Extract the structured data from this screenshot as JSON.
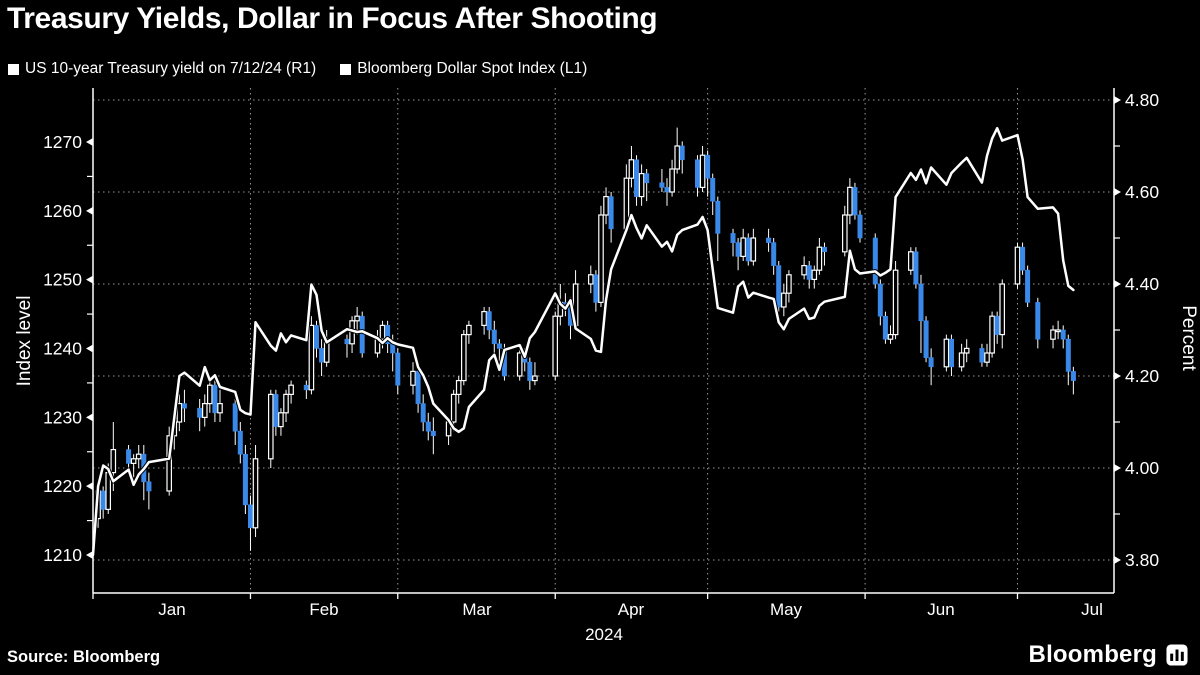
{
  "title": "Treasury Yields, Dollar in Focus After Shooting",
  "legend": {
    "items": [
      {
        "marker_color": "#ffffff",
        "label": "US 10-year Treasury yield on 7/12/24 (R1)"
      },
      {
        "marker_color": "#ffffff",
        "label": "Bloomberg Dollar Spot Index (L1)"
      }
    ]
  },
  "source_label": "Source: Bloomberg",
  "brand": {
    "wordmark": "Bloomberg"
  },
  "chart_data": {
    "type": "mixed",
    "background": "#000000",
    "text_color": "#ffffff",
    "grid": {
      "horizontal": true,
      "vertical": true,
      "color": "#999999",
      "style": "dotted"
    },
    "x_axis": {
      "months": [
        "Jan",
        "Feb",
        "Mar",
        "Apr",
        "May",
        "Jun",
        "Jul"
      ],
      "year_label": "2024",
      "month_start_days": [
        0,
        31,
        60,
        91,
        121,
        152,
        182
      ],
      "domain_days": [
        0,
        201
      ]
    },
    "left_axis": {
      "title": "Index level",
      "tick_labels": [
        1270,
        1260,
        1250,
        1240,
        1230,
        1220,
        1210
      ],
      "minor_ticks": [
        1265,
        1255,
        1245,
        1235,
        1225,
        1215
      ]
    },
    "right_axis": {
      "title": "Percent",
      "tick_labels": [
        "4.80",
        "4.60",
        "4.40",
        "4.20",
        "4.00",
        "3.80"
      ],
      "minor_ticks": [
        4.7,
        4.5,
        4.3,
        4.1,
        3.9
      ]
    },
    "series": [
      {
        "name": "US 10-year Treasury yield on 7/12/24",
        "type": "candlestick",
        "axis": "right",
        "up_body": "hollow",
        "up_color": "#ffffff",
        "down_color": "#3a89e8",
        "wick_color": "#ffffff",
        "dates": [
          "01-02",
          "01-03",
          "01-04",
          "01-05",
          "01-08",
          "01-09",
          "01-10",
          "01-11",
          "01-12",
          "01-16",
          "01-17",
          "01-18",
          "01-19",
          "01-22",
          "01-23",
          "01-24",
          "01-25",
          "01-26",
          "01-29",
          "01-30",
          "01-31",
          "02-01",
          "02-02",
          "02-05",
          "02-06",
          "02-07",
          "02-08",
          "02-09",
          "02-12",
          "02-13",
          "02-14",
          "02-15",
          "02-16",
          "02-20",
          "02-21",
          "02-22",
          "02-23",
          "02-26",
          "02-27",
          "02-28",
          "02-29",
          "03-01",
          "03-04",
          "03-05",
          "03-06",
          "03-07",
          "03-08",
          "03-11",
          "03-12",
          "03-13",
          "03-14",
          "03-15",
          "03-18",
          "03-19",
          "03-20",
          "03-21",
          "03-22",
          "03-25",
          "03-26",
          "03-27",
          "03-28",
          "04-01",
          "04-02",
          "04-03",
          "04-04",
          "04-05",
          "04-08",
          "04-09",
          "04-10",
          "04-11",
          "04-12",
          "04-15",
          "04-16",
          "04-17",
          "04-18",
          "04-19",
          "04-22",
          "04-23",
          "04-24",
          "04-25",
          "04-26",
          "04-29",
          "04-30",
          "05-01",
          "05-02",
          "05-03",
          "05-06",
          "05-07",
          "05-08",
          "05-09",
          "05-10",
          "05-13",
          "05-14",
          "05-15",
          "05-16",
          "05-17",
          "05-20",
          "05-21",
          "05-22",
          "05-23",
          "05-24",
          "05-28",
          "05-29",
          "05-30",
          "05-31",
          "06-03",
          "06-04",
          "06-05",
          "06-06",
          "06-07",
          "06-10",
          "06-11",
          "06-12",
          "06-13",
          "06-14",
          "06-17",
          "06-18",
          "06-20",
          "06-21",
          "06-24",
          "06-25",
          "06-26",
          "06-27",
          "06-28",
          "07-01",
          "07-02",
          "07-03",
          "07-05",
          "07-08",
          "07-09",
          "07-10",
          "07-11",
          "07-12"
        ],
        "open": [
          3.89,
          3.95,
          3.91,
          3.99,
          4.04,
          4.01,
          4.02,
          4.03,
          3.97,
          3.95,
          4.07,
          4.1,
          4.14,
          4.13,
          4.11,
          4.14,
          4.18,
          4.12,
          4.14,
          4.08,
          4.03,
          3.92,
          3.87,
          4.02,
          4.16,
          4.09,
          4.12,
          4.16,
          4.18,
          4.17,
          4.31,
          4.26,
          4.23,
          4.28,
          4.27,
          4.32,
          4.33,
          4.25,
          4.28,
          4.31,
          4.27,
          4.25,
          4.18,
          4.21,
          4.14,
          4.1,
          4.08,
          4.07,
          4.1,
          4.16,
          4.19,
          4.29,
          4.31,
          4.34,
          4.3,
          4.27,
          4.26,
          4.2,
          4.25,
          4.23,
          4.19,
          4.2,
          4.33,
          4.36,
          4.35,
          4.31,
          4.4,
          4.42,
          4.36,
          4.55,
          4.59,
          4.52,
          4.63,
          4.67,
          4.59,
          4.64,
          4.62,
          4.61,
          4.6,
          4.65,
          4.7,
          4.67,
          4.61,
          4.68,
          4.63,
          4.58,
          4.51,
          4.49,
          4.46,
          4.5,
          4.45,
          4.5,
          4.49,
          4.44,
          4.35,
          4.38,
          4.42,
          4.44,
          4.41,
          4.43,
          4.48,
          4.47,
          4.55,
          4.61,
          4.55,
          4.5,
          4.4,
          4.33,
          4.28,
          4.29,
          4.43,
          4.47,
          4.4,
          4.32,
          4.24,
          4.22,
          4.28,
          4.22,
          4.25,
          4.26,
          4.23,
          4.25,
          4.33,
          4.29,
          4.4,
          4.48,
          4.43,
          4.36,
          4.28,
          4.3,
          4.3,
          4.28,
          4.21
        ],
        "high": [
          3.97,
          3.96,
          4.01,
          4.1,
          4.05,
          4.03,
          4.05,
          4.05,
          3.99,
          4.09,
          4.13,
          4.16,
          4.17,
          4.15,
          4.16,
          4.2,
          4.19,
          4.17,
          4.15,
          4.1,
          4.05,
          3.94,
          4.05,
          4.17,
          4.17,
          4.13,
          4.17,
          4.19,
          4.19,
          4.33,
          4.32,
          4.28,
          4.3,
          4.29,
          4.33,
          4.35,
          4.34,
          4.3,
          4.32,
          4.32,
          4.29,
          4.26,
          4.23,
          4.22,
          4.16,
          4.12,
          4.11,
          4.11,
          4.17,
          4.2,
          4.3,
          4.32,
          4.35,
          4.35,
          4.32,
          4.28,
          4.27,
          4.26,
          4.26,
          4.24,
          4.23,
          4.34,
          4.4,
          4.38,
          4.37,
          4.43,
          4.44,
          4.43,
          4.57,
          4.61,
          4.6,
          4.66,
          4.7,
          4.68,
          4.66,
          4.65,
          4.65,
          4.63,
          4.67,
          4.74,
          4.71,
          4.68,
          4.7,
          4.69,
          4.64,
          4.59,
          4.52,
          4.5,
          4.52,
          4.51,
          4.52,
          4.52,
          4.5,
          4.45,
          4.4,
          4.43,
          4.46,
          4.45,
          4.44,
          4.5,
          4.49,
          4.57,
          4.63,
          4.62,
          4.56,
          4.51,
          4.41,
          4.34,
          4.31,
          4.45,
          4.48,
          4.48,
          4.42,
          4.33,
          4.26,
          4.29,
          4.29,
          4.27,
          4.28,
          4.27,
          4.27,
          4.34,
          4.34,
          4.41,
          4.49,
          4.49,
          4.44,
          4.37,
          4.31,
          4.32,
          4.31,
          4.29,
          4.22
        ],
        "low": [
          3.87,
          3.89,
          3.9,
          3.95,
          3.99,
          3.98,
          4.0,
          3.93,
          3.91,
          3.94,
          4.04,
          4.08,
          4.1,
          4.08,
          4.09,
          4.12,
          4.1,
          4.1,
          4.05,
          4.01,
          3.9,
          3.82,
          3.85,
          4.0,
          4.07,
          4.07,
          4.1,
          4.14,
          4.15,
          4.16,
          4.24,
          4.2,
          4.22,
          4.24,
          4.25,
          4.29,
          4.24,
          4.24,
          4.26,
          4.25,
          4.21,
          4.16,
          4.16,
          4.12,
          4.08,
          4.06,
          4.03,
          4.05,
          4.08,
          4.14,
          4.18,
          4.27,
          4.29,
          4.28,
          4.25,
          4.22,
          4.19,
          4.19,
          4.21,
          4.17,
          4.18,
          4.19,
          4.31,
          4.33,
          4.28,
          4.3,
          4.38,
          4.34,
          4.35,
          4.53,
          4.49,
          4.51,
          4.61,
          4.57,
          4.57,
          4.58,
          4.6,
          4.57,
          4.59,
          4.64,
          4.64,
          4.59,
          4.6,
          4.59,
          4.55,
          4.45,
          4.46,
          4.43,
          4.45,
          4.44,
          4.44,
          4.47,
          4.42,
          4.34,
          4.33,
          4.36,
          4.41,
          4.39,
          4.39,
          4.42,
          4.44,
          4.46,
          4.53,
          4.54,
          4.49,
          4.39,
          4.31,
          4.27,
          4.27,
          4.28,
          4.42,
          4.39,
          4.25,
          4.23,
          4.18,
          4.21,
          4.2,
          4.21,
          4.23,
          4.22,
          4.22,
          4.24,
          4.27,
          4.26,
          4.39,
          4.42,
          4.35,
          4.26,
          4.26,
          4.28,
          4.26,
          4.18,
          4.16
        ],
        "close": [
          3.95,
          3.91,
          3.99,
          4.04,
          4.01,
          4.02,
          4.03,
          3.97,
          3.95,
          4.07,
          4.1,
          4.14,
          4.13,
          4.11,
          4.14,
          4.18,
          4.12,
          4.14,
          4.08,
          4.03,
          3.92,
          3.87,
          4.02,
          4.16,
          4.09,
          4.12,
          4.16,
          4.18,
          4.17,
          4.31,
          4.26,
          4.23,
          4.28,
          4.27,
          4.32,
          4.33,
          4.25,
          4.28,
          4.31,
          4.27,
          4.25,
          4.18,
          4.21,
          4.14,
          4.1,
          4.08,
          4.07,
          4.1,
          4.16,
          4.19,
          4.29,
          4.31,
          4.34,
          4.3,
          4.27,
          4.26,
          4.2,
          4.25,
          4.23,
          4.19,
          4.2,
          4.33,
          4.36,
          4.35,
          4.31,
          4.4,
          4.42,
          4.36,
          4.55,
          4.59,
          4.52,
          4.63,
          4.67,
          4.59,
          4.64,
          4.62,
          4.61,
          4.6,
          4.65,
          4.7,
          4.67,
          4.61,
          4.68,
          4.63,
          4.58,
          4.51,
          4.49,
          4.46,
          4.5,
          4.45,
          4.5,
          4.49,
          4.44,
          4.35,
          4.38,
          4.42,
          4.44,
          4.41,
          4.43,
          4.48,
          4.47,
          4.55,
          4.61,
          4.55,
          4.5,
          4.4,
          4.33,
          4.28,
          4.29,
          4.43,
          4.47,
          4.4,
          4.32,
          4.24,
          4.22,
          4.28,
          4.22,
          4.25,
          4.26,
          4.23,
          4.25,
          4.33,
          4.29,
          4.4,
          4.48,
          4.43,
          4.36,
          4.28,
          4.3,
          4.3,
          4.28,
          4.21,
          4.19
        ]
      },
      {
        "name": "Bloomberg Dollar Spot Index",
        "type": "line",
        "axis": "left",
        "color": "#ffffff",
        "dates": [
          "01-01",
          "01-02",
          "01-03",
          "01-04",
          "01-05",
          "01-08",
          "01-09",
          "01-10",
          "01-11",
          "01-12",
          "01-16",
          "01-17",
          "01-18",
          "01-19",
          "01-22",
          "01-23",
          "01-24",
          "01-25",
          "01-26",
          "01-29",
          "01-30",
          "01-31",
          "02-01",
          "02-02",
          "02-05",
          "02-06",
          "02-07",
          "02-08",
          "02-09",
          "02-12",
          "02-13",
          "02-14",
          "02-15",
          "02-16",
          "02-20",
          "02-21",
          "02-22",
          "02-23",
          "02-26",
          "02-27",
          "02-28",
          "02-29",
          "03-01",
          "03-04",
          "03-05",
          "03-06",
          "03-07",
          "03-08",
          "03-11",
          "03-12",
          "03-13",
          "03-14",
          "03-15",
          "03-18",
          "03-19",
          "03-20",
          "03-21",
          "03-22",
          "03-25",
          "03-26",
          "03-27",
          "03-28",
          "04-01",
          "04-02",
          "04-03",
          "04-04",
          "04-05",
          "04-08",
          "04-09",
          "04-10",
          "04-11",
          "04-12",
          "04-15",
          "04-16",
          "04-17",
          "04-18",
          "04-19",
          "04-22",
          "04-23",
          "04-24",
          "04-25",
          "04-26",
          "04-29",
          "04-30",
          "05-01",
          "05-02",
          "05-03",
          "05-06",
          "05-07",
          "05-08",
          "05-09",
          "05-10",
          "05-13",
          "05-14",
          "05-15",
          "05-16",
          "05-17",
          "05-20",
          "05-21",
          "05-22",
          "05-23",
          "05-24",
          "05-28",
          "05-29",
          "05-30",
          "05-31",
          "06-03",
          "06-04",
          "06-05",
          "06-06",
          "06-07",
          "06-10",
          "06-11",
          "06-12",
          "06-13",
          "06-14",
          "06-17",
          "06-18",
          "06-20",
          "06-21",
          "06-24",
          "06-25",
          "06-26",
          "06-27",
          "06-28",
          "07-01",
          "07-02",
          "07-03",
          "07-05",
          "07-08",
          "07-09",
          "07-10",
          "07-11",
          "07-12"
        ],
        "values": [
          1210.0,
          1220.0,
          1223.0,
          1222.5,
          1220.7,
          1222.4,
          1220.2,
          1221.7,
          1222.5,
          1223.5,
          1224.0,
          1230.0,
          1236.0,
          1236.5,
          1234.6,
          1237.3,
          1235.4,
          1236.1,
          1234.4,
          1233.7,
          1231.1,
          1230.6,
          1230.4,
          1243.8,
          1240.4,
          1239.7,
          1242.2,
          1240.9,
          1241.9,
          1241.2,
          1249.3,
          1247.8,
          1242.6,
          1240.9,
          1242.8,
          1242.6,
          1242.4,
          1242.5,
          1241.5,
          1240.8,
          1241.5,
          1240.9,
          1240.6,
          1240.1,
          1237.3,
          1236.1,
          1234.4,
          1232.0,
          1229.6,
          1228.4,
          1227.9,
          1228.4,
          1231.5,
          1234.0,
          1238.3,
          1239.1,
          1236.9,
          1239.8,
          1240.5,
          1238.8,
          1241.5,
          1242.4,
          1248.0,
          1246.5,
          1245.8,
          1247.0,
          1242.9,
          1241.4,
          1239.7,
          1239.5,
          1247.0,
          1251.5,
          1257.2,
          1259.4,
          1257.5,
          1256.0,
          1257.9,
          1254.8,
          1255.5,
          1254.1,
          1256.5,
          1257.2,
          1258.0,
          1259.1,
          1257.2,
          1251.5,
          1245.9,
          1245.2,
          1249.0,
          1249.7,
          1247.4,
          1248.1,
          1247.4,
          1247.2,
          1243.8,
          1242.8,
          1244.3,
          1245.8,
          1244.3,
          1244.5,
          1246.2,
          1246.8,
          1247.5,
          1254.2,
          1251.5,
          1250.9,
          1251.2,
          1250.6,
          1251.0,
          1251.5,
          1262.0,
          1265.5,
          1264.5,
          1266.0,
          1264.0,
          1266.3,
          1263.8,
          1265.5,
          1267.0,
          1267.7,
          1264.1,
          1268.0,
          1270.5,
          1272.0,
          1270.2,
          1271.0,
          1267.5,
          1262.0,
          1260.3,
          1260.5,
          1259.6,
          1252.8,
          1249.1,
          1248.5
        ]
      }
    ]
  }
}
